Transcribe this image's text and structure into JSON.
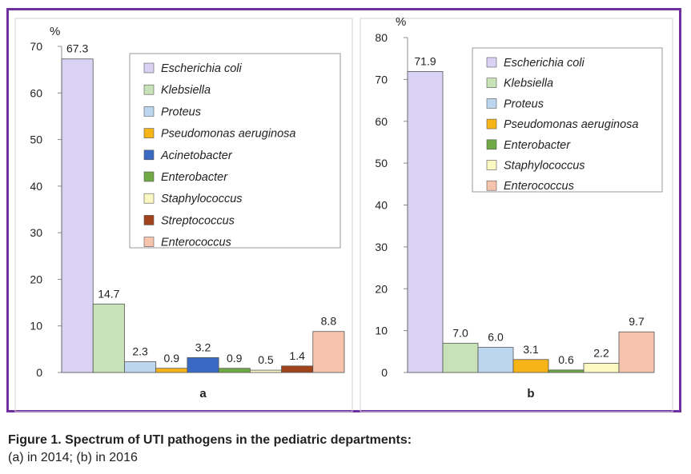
{
  "chart_data": [
    {
      "type": "bar",
      "panel_label": "a",
      "ylabel": "%",
      "ylim": [
        0,
        70
      ],
      "yticks": [
        "0",
        "10",
        "20",
        "30",
        "40",
        "50",
        "60",
        "70"
      ],
      "legend_placement": "top-right",
      "grid": false,
      "categories": [
        "Escherichia coli",
        "Klebsiella",
        "Proteus",
        "Pseudomonas aeruginosa",
        "Acinetobacter",
        "Enterobacter",
        "Staphylococcus",
        "Streptococcus",
        "Enterococcus"
      ],
      "values": [
        67.3,
        14.7,
        2.3,
        0.9,
        3.2,
        0.9,
        0.5,
        1.4,
        8.8
      ],
      "value_labels": [
        "67.3",
        "14.7",
        "2.3",
        "0.9",
        "3.2",
        "0.9",
        "0.5",
        "1.4",
        "8.8"
      ],
      "colors": [
        "#d9d2f5",
        "#c8e2b8",
        "#bcd6ef",
        "#f6b417",
        "#3a69c4",
        "#6faa45",
        "#fbf8c2",
        "#a0431a",
        "#f6c4ad"
      ]
    },
    {
      "type": "bar",
      "panel_label": "b",
      "ylabel": "%",
      "ylim": [
        0,
        80
      ],
      "yticks": [
        "0",
        "10",
        "20",
        "30",
        "40",
        "50",
        "60",
        "70",
        "80"
      ],
      "legend_placement": "top-right",
      "grid": false,
      "categories": [
        "Escherichia coli",
        "Klebsiella",
        "Proteus",
        "Pseudomonas aeruginosa",
        "Enterobacter",
        "Staphylococcus",
        "Enterococcus"
      ],
      "values": [
        71.9,
        7.0,
        6.0,
        3.1,
        0.6,
        2.2,
        9.7
      ],
      "value_labels": [
        "71.9",
        "7.0",
        "6.0",
        "3.1",
        "0.6",
        "2.2",
        "9.7"
      ],
      "colors": [
        "#d9d2f5",
        "#c8e2b8",
        "#bcd6ef",
        "#f6b417",
        "#6faa45",
        "#fbf8c2",
        "#f6c4ad"
      ]
    }
  ],
  "caption": {
    "title": "Figure 1. Spectrum of UTI pathogens in the pediatric departments:",
    "subtitle": "(a) in 2014; (b) in 2016"
  },
  "colors": {
    "frame": "#7030a0",
    "axis": "#8c8c8c",
    "bar_stroke": "#555555"
  }
}
